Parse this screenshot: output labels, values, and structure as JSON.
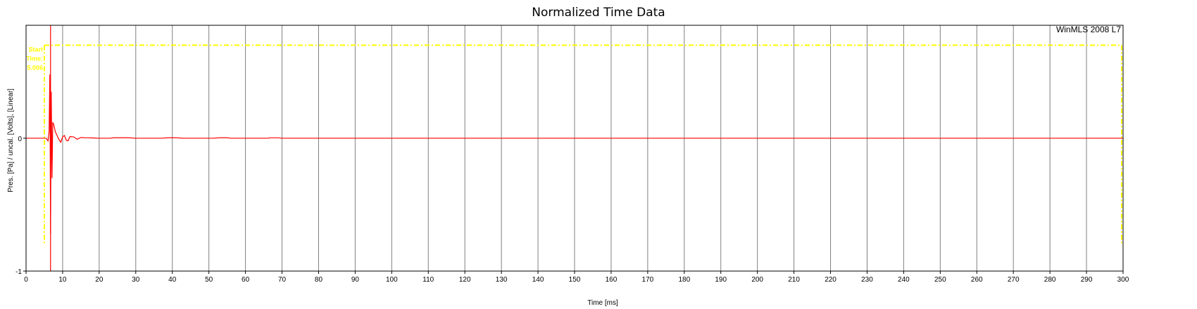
{
  "chart_data": {
    "type": "line",
    "title": "Normalized Time Data",
    "xlabel": "Time [ms]",
    "ylabel": "Pres. [Pa] / uncal. [Volts], [Linear]",
    "brand": "WinMLS 2008 L7",
    "xlim": [
      0,
      300
    ],
    "ylim": [
      -1,
      0.85
    ],
    "x_ticks": [
      0,
      10,
      20,
      30,
      40,
      50,
      60,
      70,
      80,
      90,
      100,
      110,
      120,
      130,
      140,
      150,
      160,
      170,
      180,
      190,
      200,
      210,
      220,
      230,
      240,
      250,
      260,
      270,
      280,
      290,
      300
    ],
    "y_ticks": [
      -1,
      0
    ],
    "grid": true,
    "colors": {
      "signal": "#ff0000",
      "window": "#ffff00",
      "grid": "#808080",
      "cursor": "#ff0000"
    },
    "cursor_x": 6.7,
    "window": {
      "start_ms": 5.0,
      "end_ms": 300,
      "level": 0.7,
      "bottom": -0.8,
      "labels": [
        "Start",
        "Time:",
        "5.006"
      ]
    },
    "series": [
      {
        "x": [
          0,
          5.5,
          6.0,
          6.3,
          6.5,
          6.7,
          6.9,
          7.1,
          7.3,
          7.6,
          8.0,
          8.5,
          9.0,
          9.5,
          10.0,
          10.5,
          11.0,
          11.5,
          12.0,
          13.0,
          14.0,
          15.0,
          16.0,
          17.0,
          18.0,
          20.0,
          23.0,
          24.0,
          26.0,
          28.0,
          30.0,
          37.0,
          39.0,
          41.0,
          43.0,
          51.0,
          53.0,
          55.0,
          56.0,
          66.0,
          67.0,
          69.0,
          70.0,
          300.0
        ],
        "y": [
          0,
          0,
          -0.02,
          0.05,
          0.48,
          -0.72,
          0.35,
          -0.3,
          0.12,
          0.1,
          0.05,
          0.02,
          -0.01,
          -0.03,
          0.01,
          0.02,
          -0.015,
          -0.02,
          0.012,
          0.01,
          -0.008,
          0.006,
          0.004,
          0.003,
          0.002,
          0,
          0,
          0.004,
          0.004,
          0.004,
          0,
          0,
          0.004,
          0.004,
          0,
          0,
          0.004,
          0.004,
          0,
          0,
          0.003,
          0.003,
          0,
          0
        ]
      }
    ]
  }
}
